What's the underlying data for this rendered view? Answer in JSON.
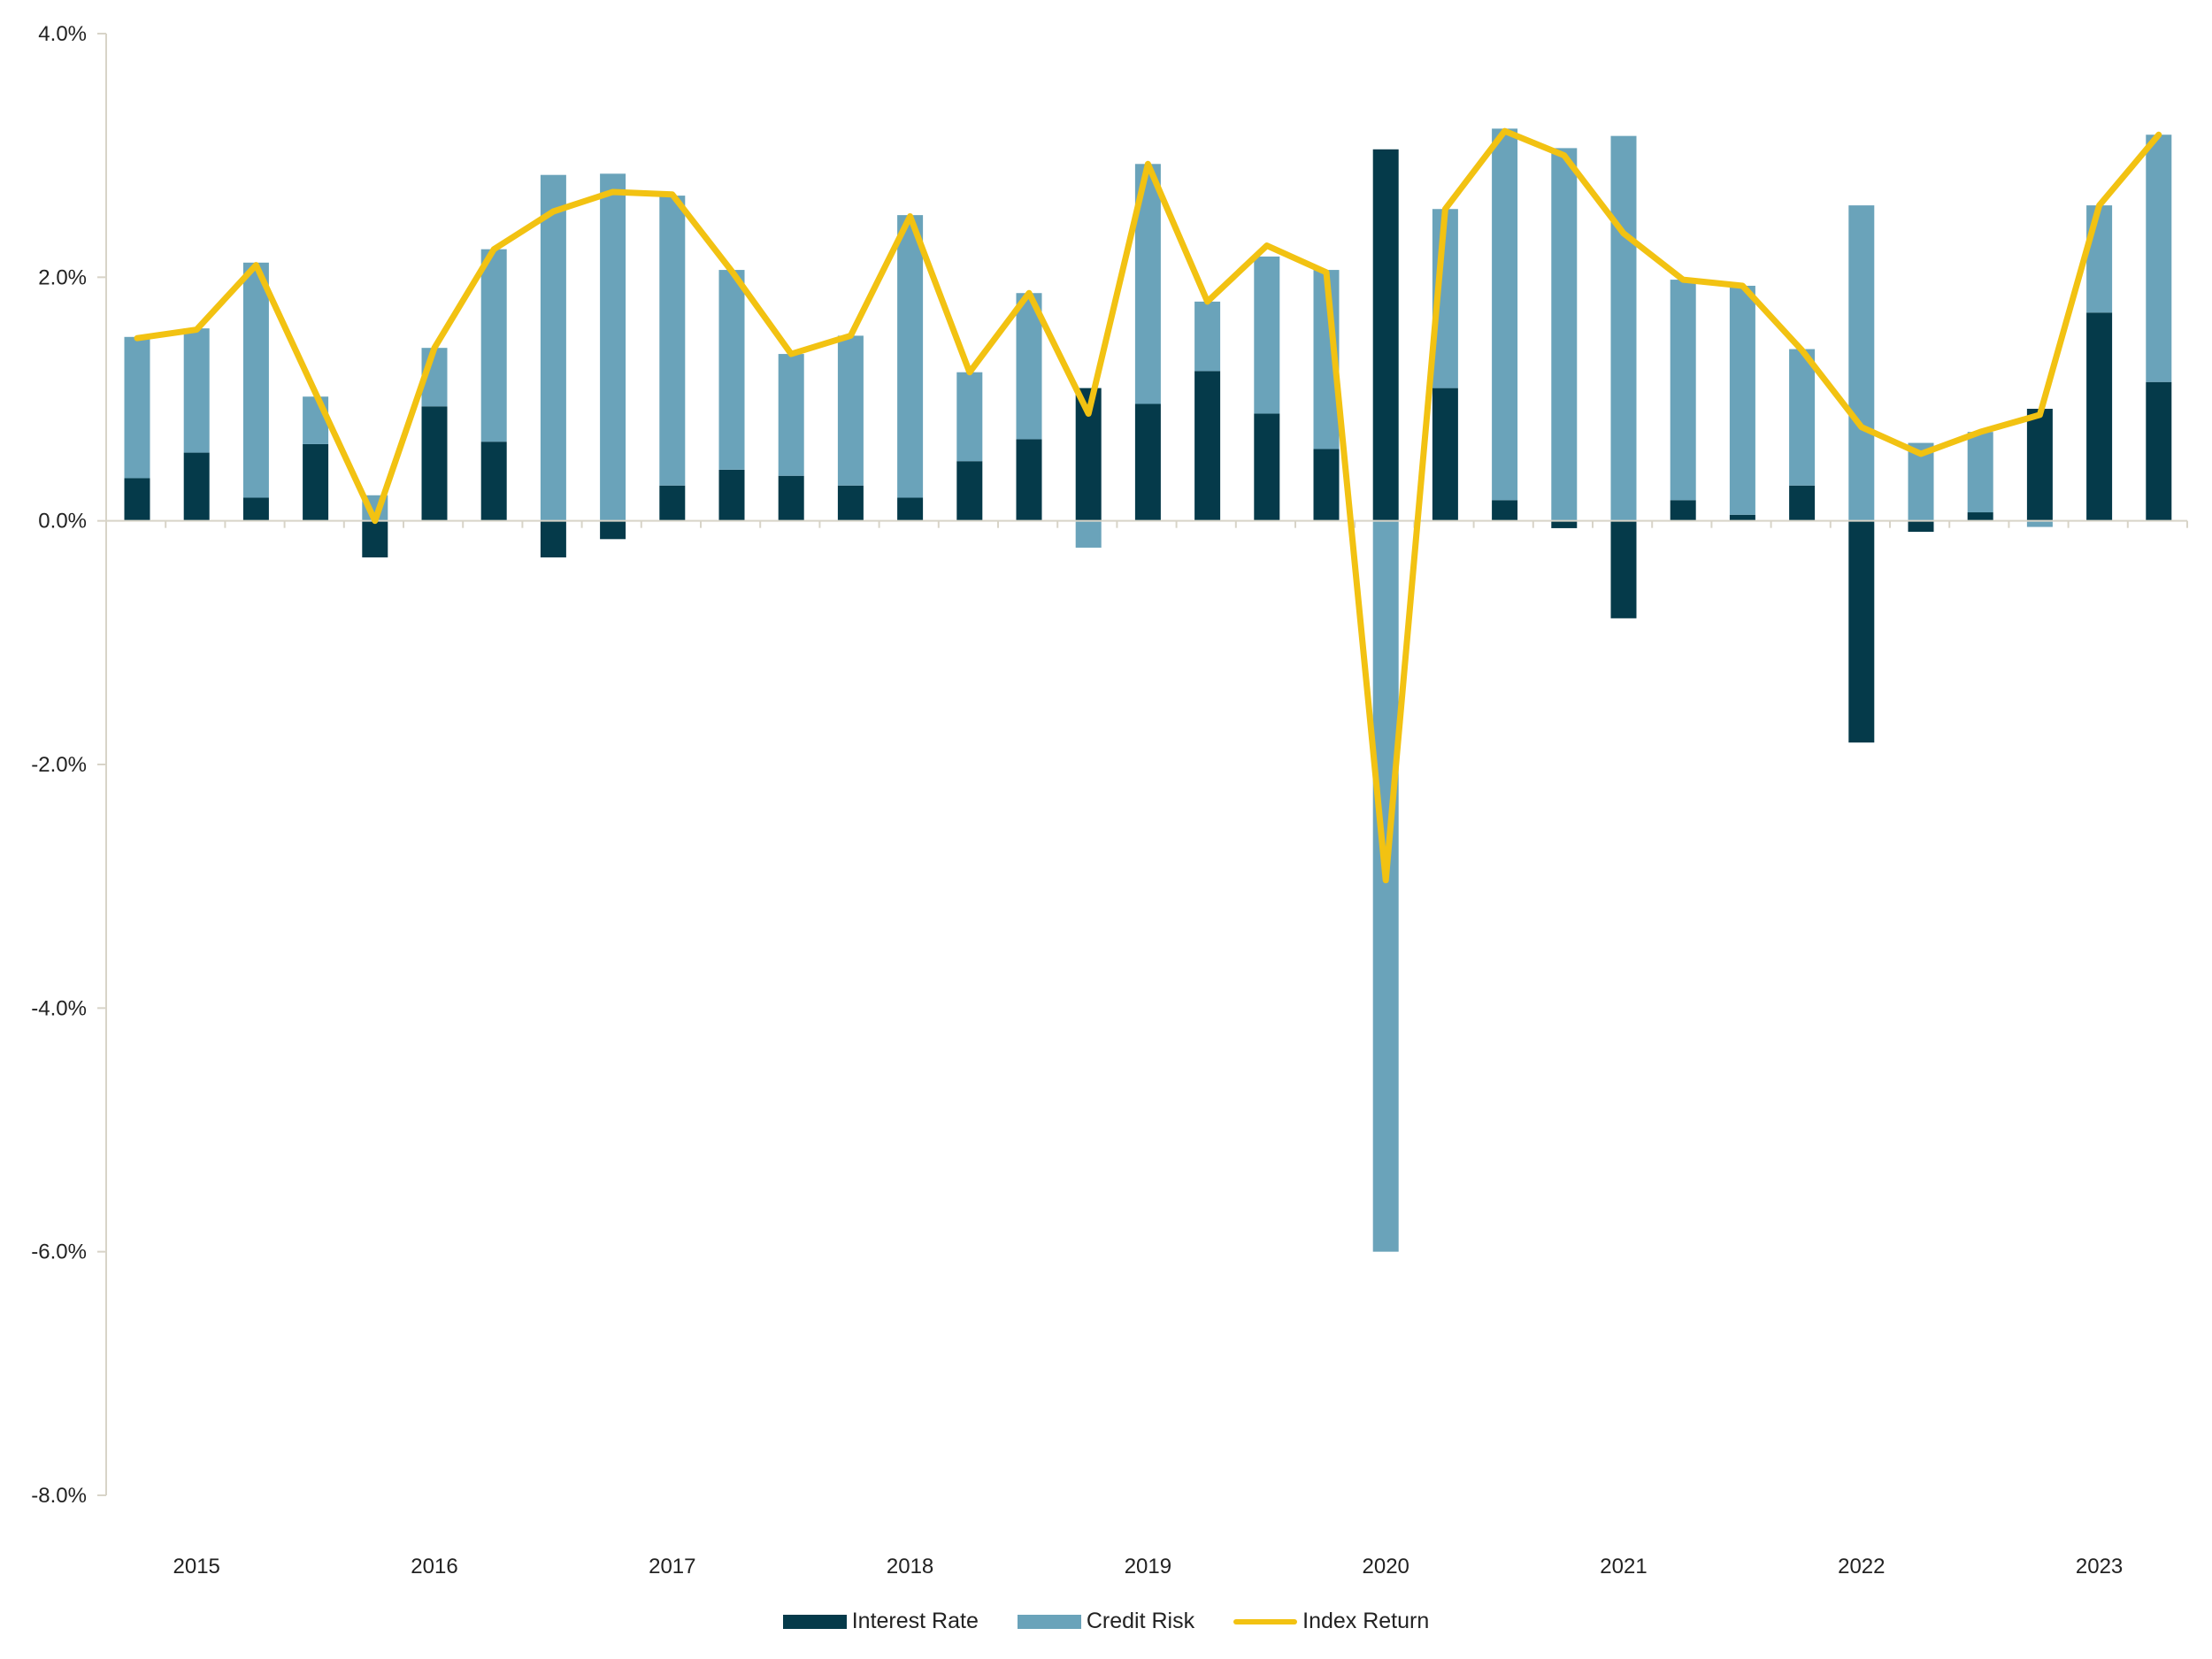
{
  "chart_data": {
    "type": "bar",
    "title": "",
    "xlabel": "",
    "ylabel": "",
    "ylim": [
      -8,
      4
    ],
    "y_ticks": [
      4,
      2,
      0,
      -2,
      -4,
      -6,
      -8
    ],
    "y_tick_labels": [
      "4.0%",
      "2.0%",
      "0.0%",
      "-2.0%",
      "-4.0%",
      "-6.0%",
      "-8.0%"
    ],
    "x_ticks": [
      {
        "label": "2015",
        "index": 1
      },
      {
        "label": "2016",
        "index": 5
      },
      {
        "label": "2017",
        "index": 9
      },
      {
        "label": "2018",
        "index": 13
      },
      {
        "label": "2019",
        "index": 17
      },
      {
        "label": "2020",
        "index": 21
      },
      {
        "label": "2021",
        "index": 25
      },
      {
        "label": "2022",
        "index": 29
      },
      {
        "label": "2023",
        "index": 33
      }
    ],
    "legend_position": "bottom-center",
    "grid": false,
    "series": [
      {
        "name": "Interest Rate",
        "kind": "bar",
        "color": "#053a4a",
        "values": [
          0.35,
          0.56,
          0.19,
          0.63,
          -0.3,
          0.94,
          0.65,
          -0.3,
          -0.15,
          0.29,
          0.42,
          0.37,
          0.29,
          0.19,
          0.49,
          0.67,
          1.09,
          0.96,
          1.23,
          0.88,
          0.59,
          3.05,
          1.09,
          0.17,
          -0.06,
          -0.8,
          0.17,
          0.05,
          0.29,
          -1.82,
          -0.09,
          0.07,
          0.92,
          1.71,
          1.14
        ]
      },
      {
        "name": "Credit Risk",
        "kind": "bar",
        "color": "#6aa3ba",
        "values": [
          1.16,
          1.02,
          1.93,
          0.39,
          0.21,
          0.48,
          1.58,
          2.84,
          2.85,
          2.38,
          1.64,
          1.0,
          1.23,
          2.32,
          0.73,
          1.2,
          -0.22,
          1.97,
          0.57,
          1.29,
          1.47,
          -6.0,
          1.47,
          3.05,
          3.06,
          3.16,
          1.81,
          1.88,
          1.12,
          2.59,
          0.64,
          0.66,
          -0.05,
          0.88,
          2.03
        ]
      },
      {
        "name": "Index Return",
        "kind": "line",
        "color": "#f2c212",
        "values": [
          1.5,
          1.57,
          2.1,
          1.05,
          0.0,
          1.42,
          2.23,
          2.54,
          2.7,
          2.68,
          2.05,
          1.37,
          1.52,
          2.5,
          1.22,
          1.87,
          0.88,
          2.93,
          1.8,
          2.26,
          2.04,
          -2.95,
          2.56,
          3.2,
          3.0,
          2.36,
          1.98,
          1.93,
          1.4,
          0.77,
          0.55,
          0.73,
          0.87,
          2.59,
          3.17
        ]
      }
    ]
  }
}
